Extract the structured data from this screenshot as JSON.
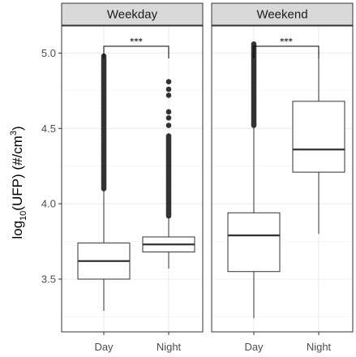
{
  "chart_data": {
    "type": "boxplot",
    "facets": [
      "Weekday",
      "Weekend"
    ],
    "categories": [
      "Day",
      "Night"
    ],
    "ylabel": {
      "prefix": "log",
      "subscript": "10",
      "middle": "(UFP) (#/cm",
      "superscript": "3",
      "suffix": ")"
    },
    "ylim": [
      3.15,
      5.18
    ],
    "yticks": [
      3.5,
      4.0,
      4.5,
      5.0
    ],
    "ytick_labels": [
      "3.5",
      "4.0",
      "4.5",
      "5.0"
    ],
    "grid": true,
    "significance": "***",
    "panels": [
      {
        "facet": "Weekday",
        "boxes": [
          {
            "category": "Day",
            "whisker_low": 3.29,
            "q1": 3.5,
            "median": 3.62,
            "q3": 3.74,
            "whisker_high": 4.1,
            "outliers_dense_range": [
              4.1,
              4.98
            ]
          },
          {
            "category": "Night",
            "whisker_low": 3.57,
            "q1": 3.68,
            "median": 3.73,
            "q3": 3.78,
            "whisker_high": 3.92,
            "outliers_dense_range": [
              3.92,
              4.45
            ],
            "outliers_sparse": [
              4.52,
              4.57,
              4.61,
              4.72,
              4.76,
              4.81
            ]
          }
        ]
      },
      {
        "facet": "Weekend",
        "boxes": [
          {
            "category": "Day",
            "whisker_low": 3.24,
            "q1": 3.55,
            "median": 3.79,
            "q3": 3.94,
            "whisker_high": 4.52,
            "outliers_dense_range": [
              4.52,
              5.06
            ]
          },
          {
            "category": "Night",
            "whisker_low": 3.8,
            "q1": 4.21,
            "median": 4.36,
            "q3": 4.68,
            "whisker_high": 4.98,
            "outliers_dense_range": null
          }
        ]
      }
    ]
  }
}
